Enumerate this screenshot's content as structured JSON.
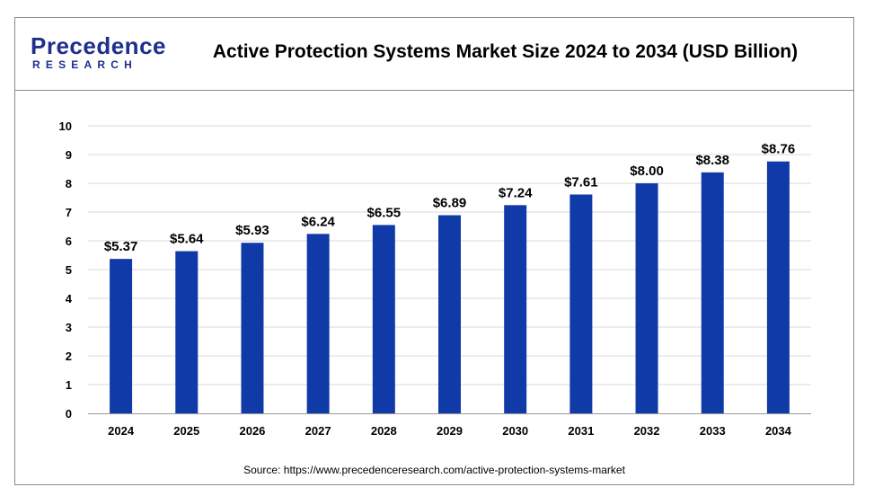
{
  "brand": {
    "logo_main": "Precedence",
    "logo_sub": "RESEARCH"
  },
  "title": "Active Protection Systems Market Size 2024 to 2034 (USD Billion)",
  "source": "Source: https://www.precedenceresearch.com/active-protection-systems-market",
  "colors": {
    "bar": "#0f3aa8",
    "brand": "#1e2f8c",
    "grid": "#d9d9d9",
    "axis": "#999999"
  },
  "chart_data": {
    "type": "bar",
    "categories": [
      "2024",
      "2025",
      "2026",
      "2027",
      "2028",
      "2029",
      "2030",
      "2031",
      "2032",
      "2033",
      "2034"
    ],
    "values": [
      5.37,
      5.64,
      5.93,
      6.24,
      6.55,
      6.89,
      7.24,
      7.61,
      8.0,
      8.38,
      8.76
    ],
    "data_labels": [
      "$5.37",
      "$5.64",
      "$5.93",
      "$6.24",
      "$6.55",
      "$6.89",
      "$7.24",
      "$7.61",
      "$8.00",
      "$8.38",
      "$8.76"
    ],
    "ylim": [
      0,
      10
    ],
    "yticks": [
      0,
      1,
      2,
      3,
      4,
      5,
      6,
      7,
      8,
      9,
      10
    ],
    "grid": true,
    "xlabel": "",
    "ylabel": ""
  }
}
